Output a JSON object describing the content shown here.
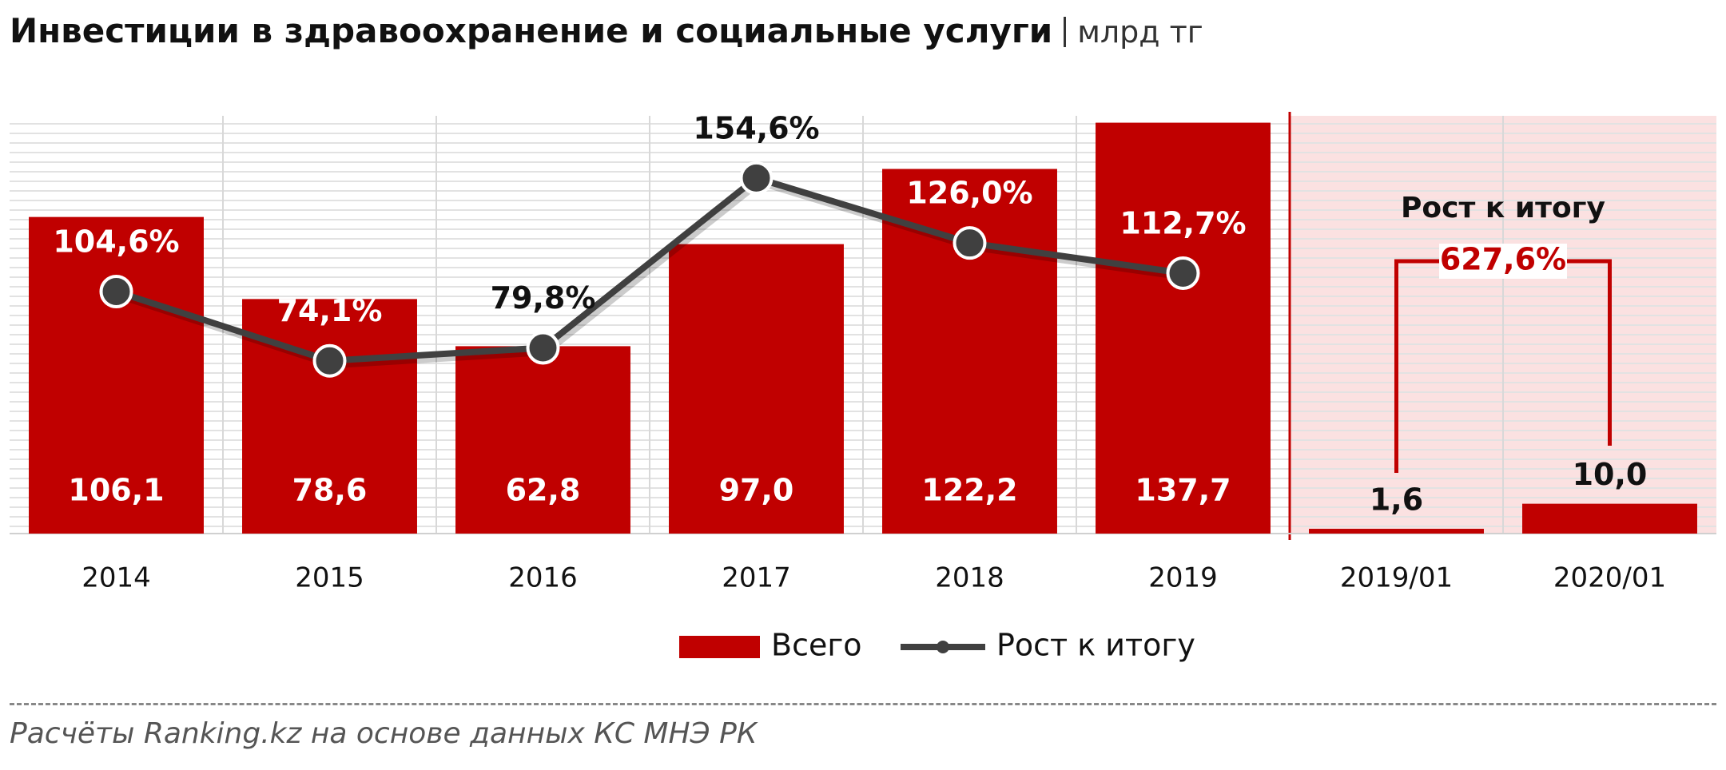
{
  "title": "Инвестиции в здравоохранение и социальные услуги",
  "unit": "млрд тг",
  "source": "Расчёты Ranking.kz на основе данных  КС МНЭ РК",
  "chart_data": {
    "type": "bar",
    "categories": [
      "2014",
      "2015",
      "2016",
      "2017",
      "2018",
      "2019",
      "2019/01",
      "2020/01"
    ],
    "series": [
      {
        "name": "Всего",
        "type": "bar",
        "color": "#c00000",
        "values": [
          106.1,
          78.6,
          62.8,
          97.0,
          122.2,
          137.7,
          1.6,
          10.0
        ],
        "value_labels": [
          "106,1",
          "78,6",
          "62,8",
          "97,0",
          "122,2",
          "137,7",
          "1,6",
          "10,0"
        ]
      },
      {
        "name": "Рост к итогу",
        "type": "line",
        "axis": "y2",
        "color": "#404040",
        "values": [
          104.6,
          74.1,
          79.8,
          154.6,
          126.0,
          112.7,
          null,
          null
        ],
        "value_labels": [
          "104,6%",
          "74,1%",
          "79,8%",
          "154,6%",
          "126,0%",
          "112,7%",
          null,
          null
        ]
      }
    ],
    "ylim": [
      0,
      140
    ],
    "y2lim": [
      -2,
      182
    ],
    "annotation": {
      "title": "Рост к итогу",
      "text": "627,6%"
    },
    "legend": "bottom",
    "grid": true
  }
}
